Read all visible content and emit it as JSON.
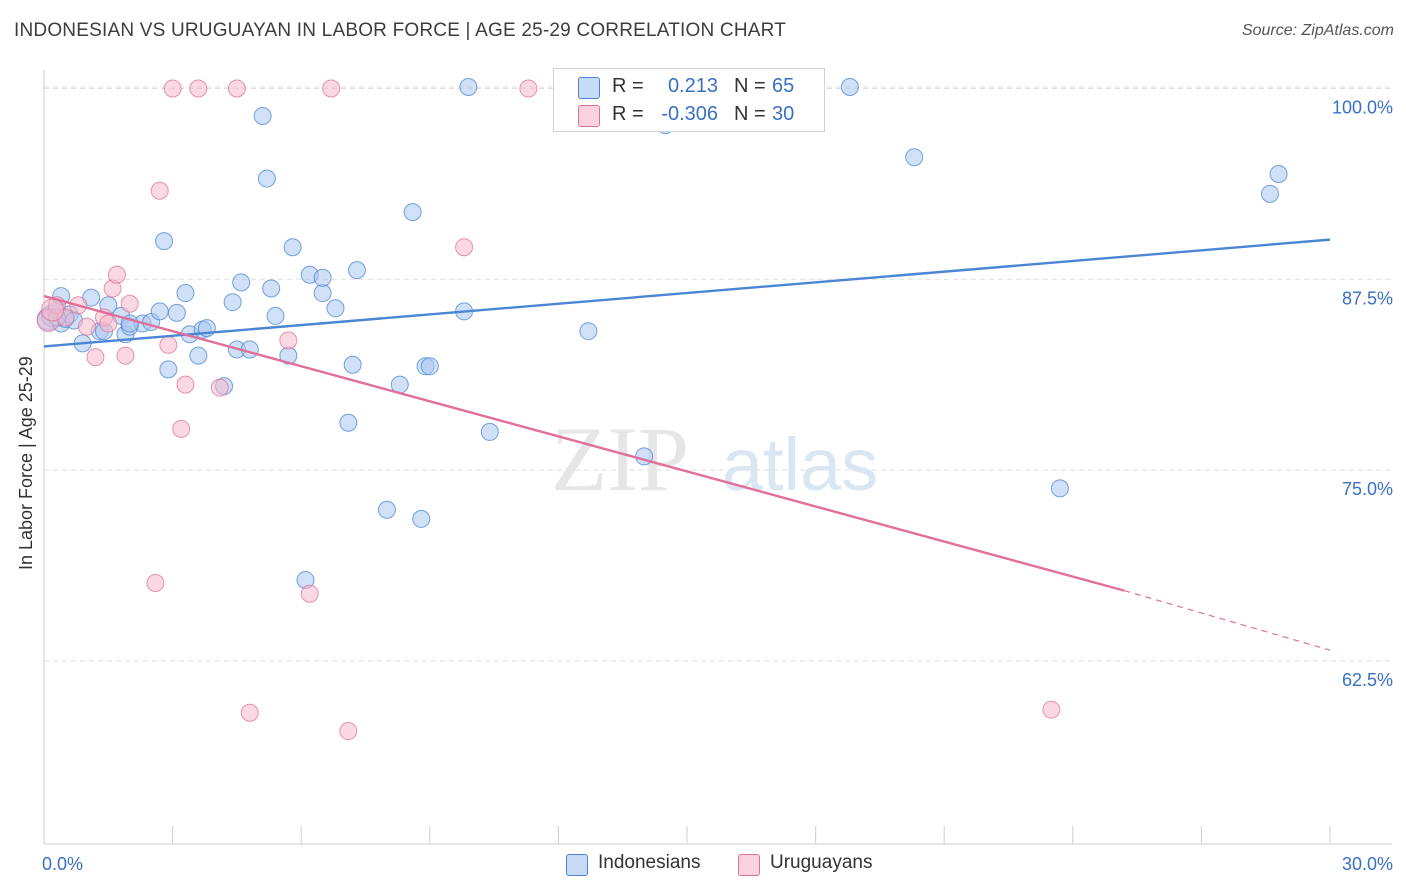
{
  "title": "INDONESIAN VS URUGUAYAN IN LABOR FORCE | AGE 25-29 CORRELATION CHART",
  "source": "Source: ZipAtlas.com",
  "watermark": {
    "zip": "ZIP",
    "atlas": "atlas"
  },
  "legend": {
    "rows": [
      {
        "r_label": "R =",
        "r_value": "0.213",
        "n_label": "N =",
        "n_value": "65",
        "color": "#a9c7f0"
      },
      {
        "r_label": "R =",
        "r_value": "-0.306",
        "n_label": "N =",
        "n_value": "30",
        "color": "#f5b9cc"
      }
    ]
  },
  "bottom_legend": [
    {
      "label": "Indonesians",
      "color": "#a9c7f0"
    },
    {
      "label": "Uruguayans",
      "color": "#f5b9cc"
    }
  ],
  "chart_data": {
    "type": "scatter",
    "title": "INDONESIAN VS URUGUAYAN IN LABOR FORCE | AGE 25-29 CORRELATION CHART",
    "xlabel": "",
    "ylabel": "In Labor Force | Age 25-29",
    "xlim": [
      0,
      30
    ],
    "ylim": [
      50.5,
      102
    ],
    "x_tick_labels": [
      "0.0%",
      "30.0%"
    ],
    "y_ticks": [
      62.5,
      75.0,
      87.5,
      100.0
    ],
    "y_tick_labels": [
      "62.5%",
      "75.0%",
      "87.5%",
      "100.0%"
    ],
    "grid": "horizontal dashed",
    "legend_position": "top-center",
    "series": [
      {
        "name": "Indonesians",
        "color": "#4a86d4",
        "fill": "#a9c7f0",
        "trend": {
          "x": [
            0,
            30
          ],
          "y": [
            83.1,
            90.1
          ],
          "style": "solid"
        },
        "points": [
          [
            0.1,
            84.9
          ],
          [
            0.2,
            85.1
          ],
          [
            0.3,
            85.5
          ],
          [
            0.4,
            84.6
          ],
          [
            0.4,
            86.4
          ],
          [
            0.5,
            84.9
          ],
          [
            0.6,
            85.2
          ],
          [
            0.7,
            84.8
          ],
          [
            0.9,
            83.3
          ],
          [
            1.1,
            86.3
          ],
          [
            1.3,
            84.1
          ],
          [
            1.5,
            85.8
          ],
          [
            1.8,
            85.1
          ],
          [
            1.9,
            83.9
          ],
          [
            2.0,
            84.4
          ],
          [
            2.3,
            84.6
          ],
          [
            2.5,
            84.7
          ],
          [
            2.7,
            85.4
          ],
          [
            2.8,
            90.0
          ],
          [
            2.9,
            81.6
          ],
          [
            3.1,
            85.3
          ],
          [
            3.3,
            86.6
          ],
          [
            3.4,
            83.9
          ],
          [
            3.6,
            82.5
          ],
          [
            3.7,
            84.2
          ],
          [
            3.8,
            84.3
          ],
          [
            4.2,
            80.5
          ],
          [
            4.4,
            86.0
          ],
          [
            4.5,
            82.9
          ],
          [
            4.6,
            87.3
          ],
          [
            4.8,
            82.9
          ],
          [
            5.1,
            98.2
          ],
          [
            5.2,
            94.1
          ],
          [
            5.3,
            86.9
          ],
          [
            5.4,
            85.1
          ],
          [
            5.7,
            82.5
          ],
          [
            5.8,
            89.6
          ],
          [
            6.1,
            67.8
          ],
          [
            6.2,
            87.8
          ],
          [
            6.5,
            86.6
          ],
          [
            6.5,
            87.6
          ],
          [
            6.8,
            85.6
          ],
          [
            7.1,
            78.1
          ],
          [
            7.2,
            81.9
          ],
          [
            7.3,
            88.1
          ],
          [
            8.0,
            72.4
          ],
          [
            8.3,
            80.6
          ],
          [
            8.6,
            91.9
          ],
          [
            8.8,
            71.8
          ],
          [
            8.9,
            81.8
          ],
          [
            9.0,
            81.8
          ],
          [
            9.8,
            85.4
          ],
          [
            9.9,
            100.1
          ],
          [
            10.4,
            77.5
          ],
          [
            12.7,
            84.1
          ],
          [
            14.0,
            75.9
          ],
          [
            14.5,
            97.6
          ],
          [
            18.8,
            100.1
          ],
          [
            20.3,
            95.5
          ],
          [
            23.7,
            73.8
          ],
          [
            28.6,
            93.1
          ],
          [
            28.8,
            94.4
          ],
          [
            2.0,
            84.6
          ],
          [
            1.4,
            84.1
          ],
          [
            0.3,
            85.0
          ]
        ]
      },
      {
        "name": "Uruguayans",
        "color": "#e0709a",
        "fill": "#f5b9cc",
        "trend": {
          "x": [
            0,
            25.2
          ],
          "y": [
            86.4,
            67.1
          ],
          "style": "solid",
          "dashed_extension": {
            "x": [
              25.2,
              30
            ],
            "y": [
              67.1,
              63.2
            ]
          }
        },
        "points": [
          [
            0.1,
            84.8
          ],
          [
            0.3,
            85.8
          ],
          [
            0.5,
            85.0
          ],
          [
            0.8,
            85.8
          ],
          [
            1.2,
            82.4
          ],
          [
            1.4,
            85.0
          ],
          [
            1.6,
            86.9
          ],
          [
            1.7,
            87.8
          ],
          [
            1.9,
            82.5
          ],
          [
            2.0,
            85.9
          ],
          [
            2.6,
            67.6
          ],
          [
            2.7,
            93.3
          ],
          [
            2.9,
            83.2
          ],
          [
            3.0,
            100.0
          ],
          [
            3.2,
            77.7
          ],
          [
            3.3,
            80.6
          ],
          [
            3.6,
            100.0
          ],
          [
            4.1,
            80.4
          ],
          [
            4.5,
            100.0
          ],
          [
            4.8,
            59.1
          ],
          [
            5.7,
            83.5
          ],
          [
            6.2,
            66.9
          ],
          [
            6.7,
            100.0
          ],
          [
            7.1,
            57.9
          ],
          [
            9.8,
            89.6
          ],
          [
            11.3,
            100.0
          ],
          [
            23.5,
            59.3
          ],
          [
            0.2,
            85.5
          ],
          [
            1.0,
            84.4
          ],
          [
            1.5,
            84.6
          ]
        ]
      }
    ]
  }
}
